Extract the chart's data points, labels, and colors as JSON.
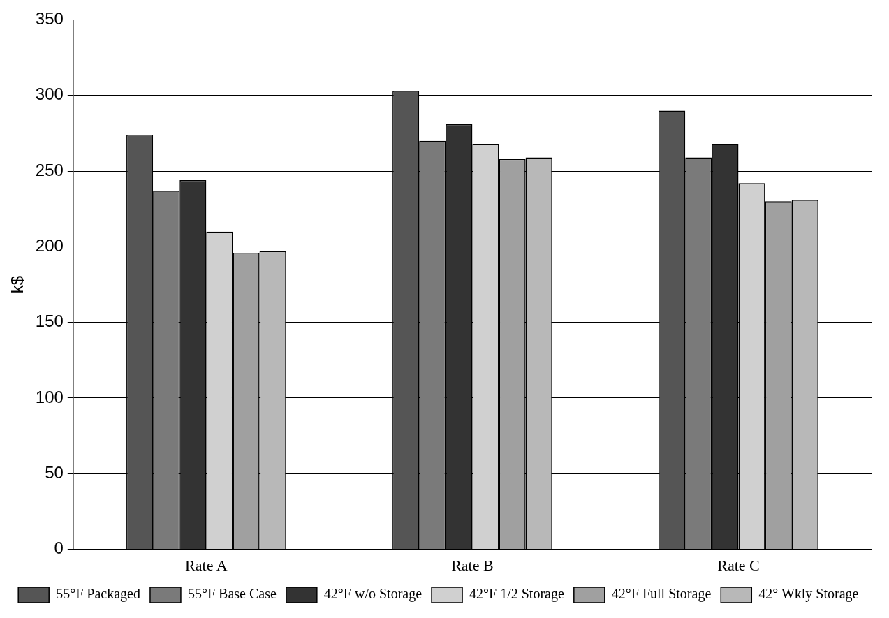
{
  "chart_data": {
    "type": "bar",
    "ylabel": "k$",
    "categories": [
      "Rate A",
      "Rate B",
      "Rate C"
    ],
    "series": [
      {
        "name": "55°F Packaged",
        "color": "#555555",
        "values": [
          274,
          303,
          290
        ]
      },
      {
        "name": "55°F Base Case",
        "color": "#7a7a7a",
        "values": [
          237,
          270,
          259
        ]
      },
      {
        "name": "42°F w/o Storage",
        "color": "#333333",
        "values": [
          244,
          281,
          268
        ]
      },
      {
        "name": "42°F 1/2 Storage",
        "color": "#d0d0d0",
        "values": [
          210,
          268,
          242
        ]
      },
      {
        "name": "42°F Full Storage",
        "color": "#a0a0a0",
        "values": [
          196,
          258,
          230
        ]
      },
      {
        "name": "42° Wkly Storage",
        "color": "#b8b8b8",
        "values": [
          197,
          259,
          231
        ]
      }
    ],
    "ylim": [
      0,
      350
    ],
    "yticks": [
      0,
      50,
      100,
      150,
      200,
      250,
      300,
      350
    ],
    "grid": "y",
    "legend": "bottom"
  }
}
